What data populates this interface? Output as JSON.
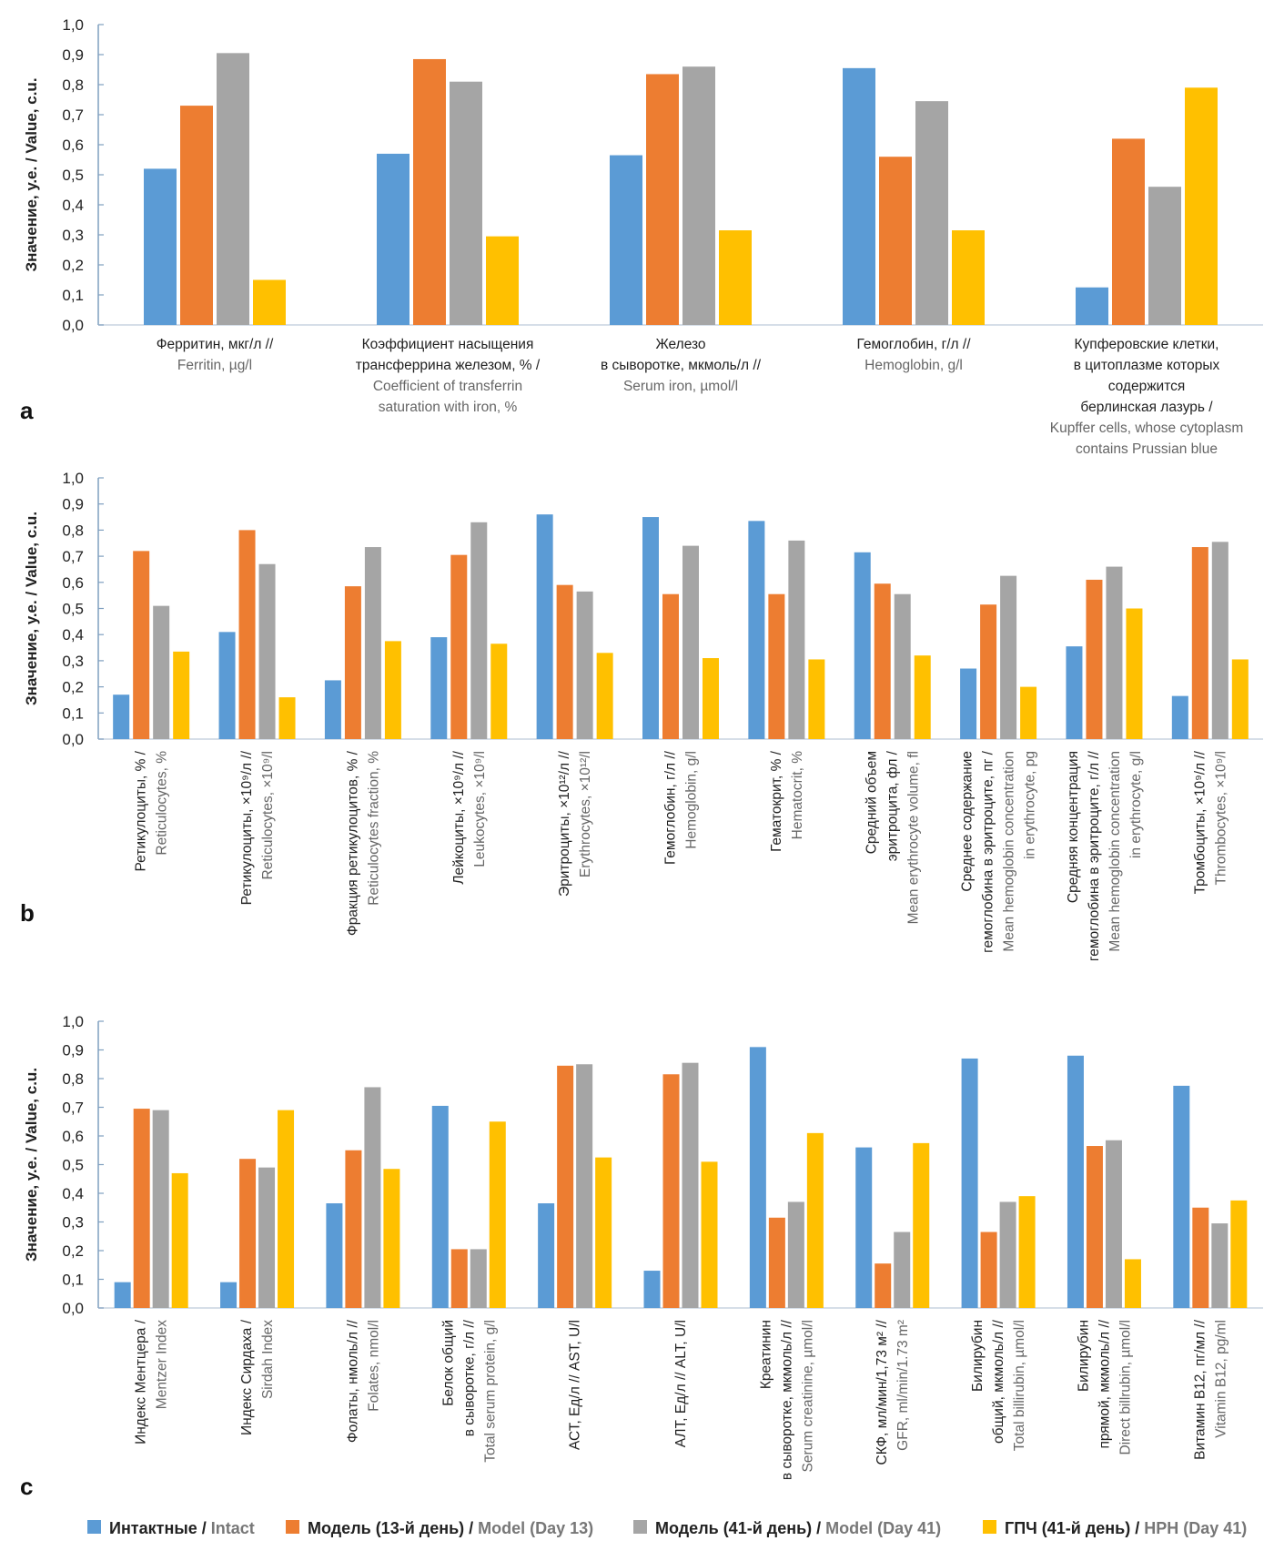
{
  "colors": {
    "intact": "#5b9bd5",
    "model13": "#ed7d31",
    "model41": "#a5a5a5",
    "hph41": "#ffc000",
    "axis": "#7f9fbf"
  },
  "legend": [
    {
      "ru": "Интактные / ",
      "en": "Intact",
      "color_key": "intact"
    },
    {
      "ru": "Модель (13-й день) / ",
      "en": "Model (Day 13)",
      "color_key": "model13"
    },
    {
      "ru": "Модель (41-й день) / ",
      "en": "Model (Day 41)",
      "color_key": "model41"
    },
    {
      "ru": "ГПЧ (41-й день) / ",
      "en": "HPH (Day 41)",
      "color_key": "hph41"
    }
  ],
  "chart_data": [
    {
      "panel": "a",
      "type": "bar",
      "ylabel": "Значение, у.е. / Value, c.u.",
      "ylim": [
        0,
        1.0
      ],
      "yticks": [
        "0,0",
        "0,1",
        "0,2",
        "0,3",
        "0,4",
        "0,5",
        "0,6",
        "0,7",
        "0,8",
        "0,9",
        "1,0"
      ],
      "categories": [
        {
          "ru": [
            "Ферритин, мкг/л //"
          ],
          "en": [
            "Ferritin, µg/l"
          ]
        },
        {
          "ru": [
            "Коэффициент насыщения",
            "трансферрина железом, % /"
          ],
          "en": [
            "Coefficient of transferrin",
            "saturation with iron, %"
          ]
        },
        {
          "ru": [
            "Железо",
            "в сыворотке, мкмоль/л //"
          ],
          "en": [
            "Serum iron, µmol/l"
          ]
        },
        {
          "ru": [
            "Гемоглобин, г/л //"
          ],
          "en": [
            "Hemoglobin, g/l"
          ]
        },
        {
          "ru": [
            "Купферовские клетки,",
            "в цитоплазме которых",
            "содержится",
            "берлинская лазурь /"
          ],
          "en": [
            "Kupffer cells, whose cytoplasm",
            "contains Prussian blue"
          ]
        }
      ],
      "series": [
        {
          "key": "intact",
          "values": [
            0.52,
            0.57,
            0.565,
            0.855,
            0.125
          ]
        },
        {
          "key": "model13",
          "values": [
            0.73,
            0.885,
            0.835,
            0.56,
            0.62
          ]
        },
        {
          "key": "model41",
          "values": [
            0.905,
            0.81,
            0.86,
            0.745,
            0.46
          ]
        },
        {
          "key": "hph41",
          "values": [
            0.15,
            0.295,
            0.315,
            0.315,
            0.79
          ]
        }
      ]
    },
    {
      "panel": "b",
      "type": "bar",
      "ylabel": "Значение, у.е. / Value, c.u.",
      "ylim": [
        0,
        1.0
      ],
      "yticks": [
        "0,0",
        "0,1",
        "0,2",
        "0,3",
        "0,4",
        "0,5",
        "0,6",
        "0,7",
        "0,8",
        "0,9",
        "1,0"
      ],
      "categories": [
        {
          "ru": [
            "Ретикулоциты, % /"
          ],
          "en": [
            "Reticulocytes, %"
          ]
        },
        {
          "ru": [
            "Ретикулоциты, ×10⁹/л //"
          ],
          "en": [
            "Reticulocytes, ×10⁹/l"
          ]
        },
        {
          "ru": [
            "Фракция ретикулоцитов, % /"
          ],
          "en": [
            "Reticulocytes fraction, %"
          ]
        },
        {
          "ru": [
            "Лейкоциты, ×10⁹/л //"
          ],
          "en": [
            "Leukocytes, ×10⁹/l"
          ]
        },
        {
          "ru": [
            "Эритроциты, ×10¹²/л //"
          ],
          "en": [
            "Erythrocytes, ×10¹²/l"
          ]
        },
        {
          "ru": [
            "Гемоглобин, г/л //"
          ],
          "en": [
            "Hemoglobin, g/l"
          ]
        },
        {
          "ru": [
            "Гематокрит, % /"
          ],
          "en": [
            "Hematocrit, %"
          ]
        },
        {
          "ru": [
            "Средний объем",
            "эритроцита, фл /"
          ],
          "en": [
            "Mean erythrocyte volume, fl"
          ]
        },
        {
          "ru": [
            "Среднее содержание",
            "гемоглобина в эритроците, пг /"
          ],
          "en": [
            "Mean hemoglobin concentration",
            "in erythrocyte, pg"
          ]
        },
        {
          "ru": [
            "Средняя концентрация",
            "гемоглобина в эритроците, г/л //"
          ],
          "en": [
            "Mean hemoglobin concentration",
            "in erythrocyte, g/l"
          ]
        },
        {
          "ru": [
            "Тромбоциты, ×10⁹/л //"
          ],
          "en": [
            "Thrombocytes, ×10⁹/l"
          ]
        }
      ],
      "series": [
        {
          "key": "intact",
          "values": [
            0.17,
            0.41,
            0.225,
            0.39,
            0.86,
            0.85,
            0.835,
            0.715,
            0.27,
            0.355,
            0.165
          ]
        },
        {
          "key": "model13",
          "values": [
            0.72,
            0.8,
            0.585,
            0.705,
            0.59,
            0.555,
            0.555,
            0.595,
            0.515,
            0.61,
            0.735
          ]
        },
        {
          "key": "model41",
          "values": [
            0.51,
            0.67,
            0.735,
            0.83,
            0.565,
            0.74,
            0.76,
            0.555,
            0.625,
            0.66,
            0.755
          ]
        },
        {
          "key": "hph41",
          "values": [
            0.335,
            0.16,
            0.375,
            0.365,
            0.33,
            0.31,
            0.305,
            0.32,
            0.2,
            0.5,
            0.305
          ]
        }
      ]
    },
    {
      "panel": "c",
      "type": "bar",
      "ylabel": "Значение, у.е. / Value, c.u.",
      "ylim": [
        0,
        1.0
      ],
      "yticks": [
        "0,0",
        "0,1",
        "0,2",
        "0,3",
        "0,4",
        "0,5",
        "0,6",
        "0,7",
        "0,8",
        "0,9",
        "1,0"
      ],
      "categories": [
        {
          "ru": [
            "Индекс Ментцера /"
          ],
          "en": [
            "Mentzer Index"
          ]
        },
        {
          "ru": [
            "Индекс Сирдаха /"
          ],
          "en": [
            "Sirdah Index"
          ]
        },
        {
          "ru": [
            "Фолаты, нмоль/л //"
          ],
          "en": [
            "Folates, nmol/l"
          ]
        },
        {
          "ru": [
            "Белок общий",
            "в сыворотке, г/л //"
          ],
          "en": [
            "Total serum protein, g/l"
          ]
        },
        {
          "ru": [
            "АСТ, Ед/л // AST, U/l"
          ],
          "en": []
        },
        {
          "ru": [
            "АЛТ, Ед/л // ALT, U/l"
          ],
          "en": []
        },
        {
          "ru": [
            "Креатинин",
            "в сыворотке, мкмоль/л //"
          ],
          "en": [
            "Serum creatinine, µmol/l"
          ]
        },
        {
          "ru": [
            "СКФ, мл/мин/1,73 м² //"
          ],
          "en": [
            "GFR, ml/min/1.73 m²"
          ]
        },
        {
          "ru": [
            "Билирубин",
            "общий, мкмоль/л //"
          ],
          "en": [
            "Total billirubin, µmol/l"
          ]
        },
        {
          "ru": [
            "Билирубин",
            "прямой, мкмоль/л //"
          ],
          "en": [
            "Direct billrubin, µmol/l"
          ]
        },
        {
          "ru": [
            "Витамин В12, пг/мл //"
          ],
          "en": [
            "Vitamin B12, pg/ml"
          ]
        }
      ],
      "series": [
        {
          "key": "intact",
          "values": [
            0.09,
            0.09,
            0.365,
            0.705,
            0.365,
            0.13,
            0.91,
            0.56,
            0.87,
            0.88,
            0.775
          ]
        },
        {
          "key": "model13",
          "values": [
            0.695,
            0.52,
            0.55,
            0.205,
            0.845,
            0.815,
            0.315,
            0.155,
            0.265,
            0.565,
            0.35
          ]
        },
        {
          "key": "model41",
          "values": [
            0.69,
            0.49,
            0.77,
            0.205,
            0.85,
            0.855,
            0.37,
            0.265,
            0.37,
            0.585,
            0.295
          ]
        },
        {
          "key": "hph41",
          "values": [
            0.47,
            0.69,
            0.485,
            0.65,
            0.525,
            0.51,
            0.61,
            0.575,
            0.39,
            0.17,
            0.375
          ]
        }
      ]
    }
  ]
}
